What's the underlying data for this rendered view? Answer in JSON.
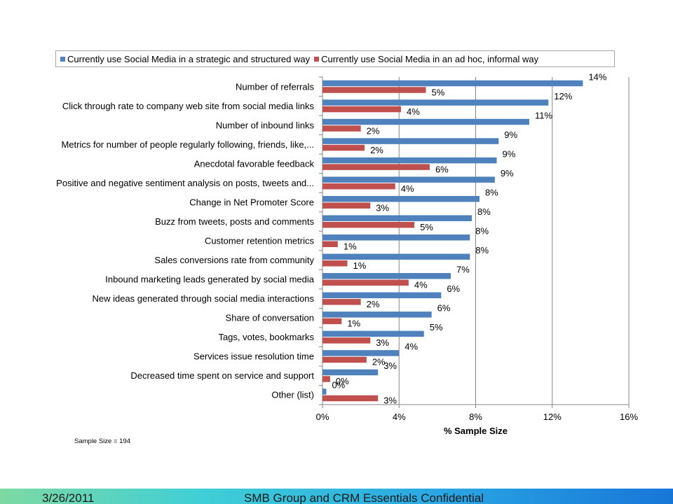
{
  "chart_data": {
    "type": "bar",
    "orientation": "horizontal",
    "categories": [
      "Number of referrals",
      "Click through rate to company web site from social media links",
      "Number of inbound links",
      "Metrics for number of people regularly following, friends, like,...",
      "Anecdotal favorable feedback",
      "Positive and negative sentiment analysis on posts, tweets and...",
      "Change in Net Promoter Score",
      "Buzz from tweets, posts and comments",
      "Customer retention metrics",
      "Sales conversions rate from community",
      "Inbound marketing leads generated by social media",
      "New ideas generated through social media interactions",
      "Share of conversation",
      "Tags, votes, bookmarks",
      "Services issue resolution time",
      "Decreased time spent on service and support",
      "Other (list)"
    ],
    "series": [
      {
        "name": "Currently use Social Media in a strategic and structured way",
        "color": "#4f81bd",
        "values": [
          13.6,
          11.8,
          10.8,
          9.2,
          9.1,
          9.0,
          8.2,
          7.8,
          7.7,
          7.7,
          6.7,
          6.2,
          5.7,
          5.3,
          4.0,
          2.9,
          0.2
        ],
        "labels": [
          "14%",
          "12%",
          "11%",
          "9%",
          "9%",
          "9%",
          "8%",
          "8%",
          "8%",
          "8%",
          "7%",
          "6%",
          "6%",
          "5%",
          "4%",
          "3%",
          "0%"
        ]
      },
      {
        "name": "Currently use Social Media in an ad hoc, informal way",
        "color": "#c0504d",
        "values": [
          5.4,
          4.1,
          2.0,
          2.2,
          5.6,
          3.8,
          2.5,
          4.8,
          0.8,
          1.3,
          4.5,
          2.0,
          1.0,
          2.5,
          2.3,
          0.4,
          2.9
        ],
        "labels": [
          "5%",
          "4%",
          "2%",
          "2%",
          "6%",
          "4%",
          "3%",
          "5%",
          "1%",
          "1%",
          "4%",
          "2%",
          "1%",
          "3%",
          "2%",
          "0%",
          "3%"
        ]
      }
    ],
    "xlim": [
      0,
      16
    ],
    "xticks": [
      0,
      4,
      8,
      12,
      16
    ],
    "xtick_labels": [
      "0%",
      "4%",
      "8%",
      "12%",
      "16%"
    ],
    "xlabel": "% Sample Size",
    "grid": "vertical",
    "legend": "top"
  },
  "note": "Sample Size = 194",
  "footer": {
    "date": "3/26/2011",
    "text": "SMB Group and CRM Essentials Confidential"
  }
}
